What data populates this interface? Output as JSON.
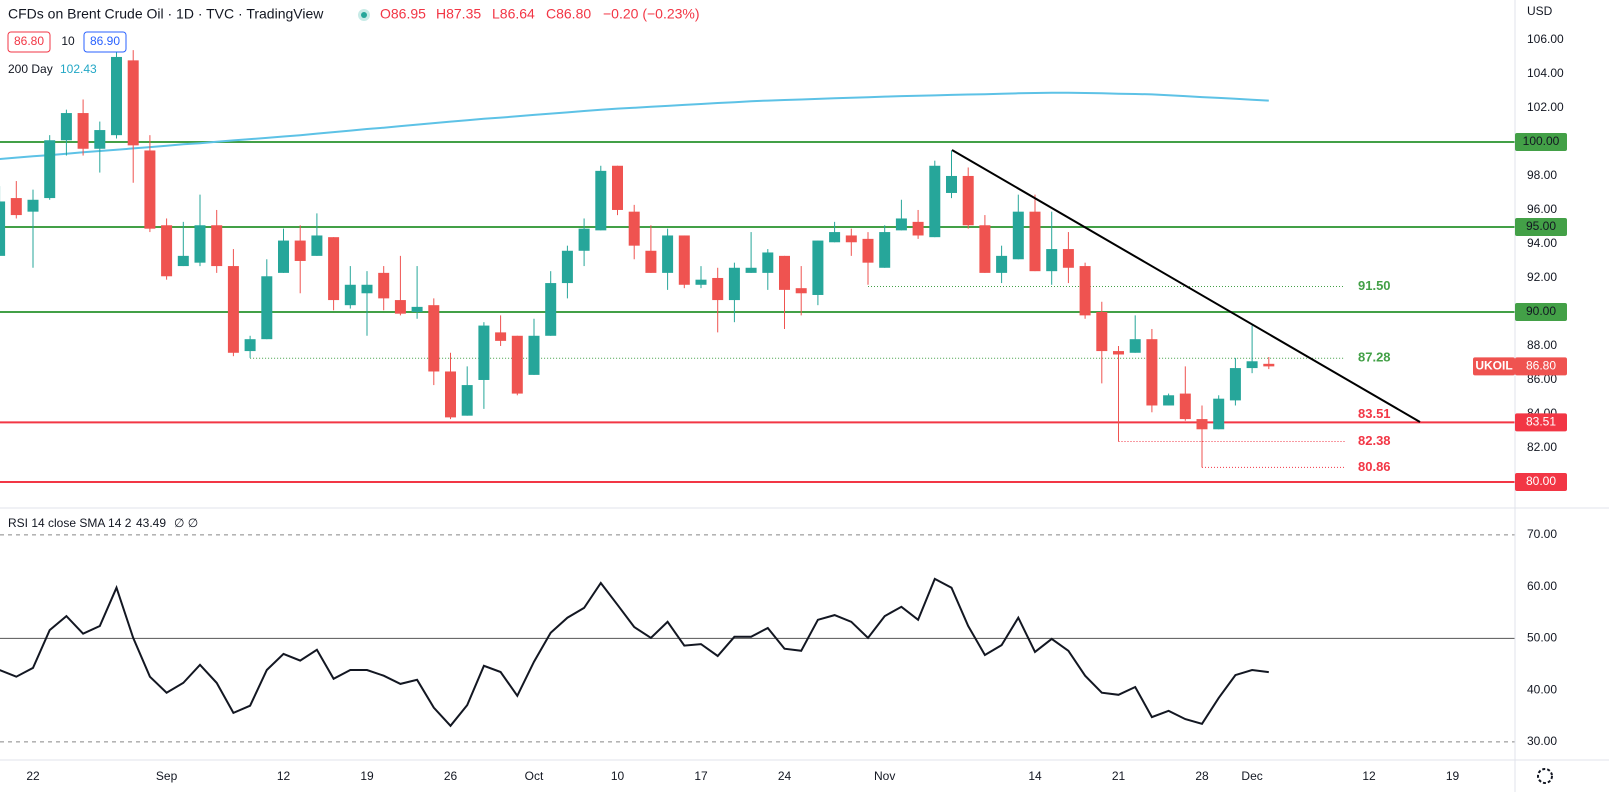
{
  "header": {
    "title": "CFDs on Brent Crude Oil · 1D · TVC · TradingView",
    "ohlc": [
      "O86.95",
      "H87.35",
      "L86.64",
      "C86.80",
      "−0.20 (−0.23%)"
    ],
    "bid": "86.80",
    "spread": "10",
    "ask": "86.90",
    "symbol": "UKOIL",
    "last": "86.80",
    "currency": "USD"
  },
  "chart_data": {
    "type": "candlestick",
    "categories": [
      null,
      null,
      "22",
      null,
      null,
      null,
      null,
      null,
      null,
      null,
      "Sep",
      null,
      null,
      null,
      null,
      null,
      null,
      "12",
      null,
      null,
      null,
      null,
      "19",
      null,
      null,
      null,
      null,
      "26",
      null,
      null,
      null,
      null,
      "Oct",
      null,
      null,
      null,
      null,
      "10",
      null,
      null,
      null,
      null,
      "17",
      null,
      null,
      null,
      null,
      "24",
      null,
      null,
      null,
      null,
      null,
      "Nov",
      null,
      null,
      null,
      null,
      null,
      null,
      null,
      null,
      "14",
      null,
      null,
      null,
      null,
      "21",
      null,
      null,
      null,
      null,
      "28",
      null,
      null,
      "Dec",
      null,
      null,
      null,
      null,
      null,
      null,
      "12",
      null,
      null,
      null,
      null,
      "19",
      null,
      null,
      null
    ],
    "open": [
      93.3,
      96.7,
      95.9,
      96.7,
      100.1,
      101.7,
      99.6,
      100.4,
      104.8,
      99.5,
      95.1,
      92.7,
      92.9,
      95.1,
      92.7,
      87.7,
      88.4,
      92.3,
      94.2,
      93.3,
      94.4,
      90.4,
      91.1,
      92.3,
      90.7,
      90.0,
      90.4,
      86.5,
      83.9,
      86.0,
      88.8,
      88.6,
      86.3,
      88.6,
      91.7,
      93.6,
      94.8,
      98.6,
      95.9,
      93.6,
      92.3,
      94.5,
      91.6,
      92.0,
      90.7,
      92.3,
      92.3,
      93.3,
      91.4,
      91.0,
      94.1,
      94.5,
      94.3,
      92.6,
      94.8,
      95.3,
      94.4,
      97.0,
      98.0,
      95.1,
      92.3,
      93.1,
      95.9,
      92.4,
      93.7,
      92.7,
      90.0,
      87.7,
      87.6,
      88.4,
      84.5,
      85.2,
      83.7,
      83.1,
      84.8,
      86.7,
      86.95,
      null,
      null,
      null,
      null,
      null,
      null,
      null,
      null,
      null,
      null,
      null,
      null,
      null,
      null
    ],
    "high": [
      97.4,
      97.7,
      97.2,
      100.4,
      101.9,
      102.5,
      101.2,
      105.5,
      105.4,
      100.4,
      95.5,
      95.3,
      96.9,
      96.0,
      93.7,
      88.6,
      93.1,
      94.9,
      95.1,
      95.8,
      94.4,
      92.7,
      92.4,
      92.7,
      93.3,
      92.7,
      90.8,
      87.6,
      86.8,
      89.4,
      89.8,
      88.6,
      89.6,
      92.4,
      93.9,
      95.5,
      98.6,
      98.6,
      96.3,
      95.1,
      94.9,
      94.5,
      92.7,
      92.6,
      92.9,
      94.7,
      93.7,
      93.3,
      92.7,
      94.2,
      95.3,
      94.9,
      94.7,
      95.1,
      96.6,
      96.0,
      98.9,
      99.5,
      98.5,
      95.7,
      93.9,
      96.9,
      96.9,
      95.9,
      94.7,
      92.9,
      90.6,
      88.0,
      89.8,
      89.0,
      85.2,
      86.8,
      84.5,
      85.1,
      87.3,
      89.2,
      87.35,
      null,
      null,
      null,
      null,
      null,
      null,
      null,
      null,
      null,
      null,
      null,
      null,
      null,
      null
    ],
    "low": [
      93.3,
      95.5,
      92.6,
      96.6,
      99.2,
      99.2,
      98.2,
      100.2,
      97.6,
      94.7,
      91.9,
      92.7,
      92.7,
      92.3,
      87.4,
      87.3,
      88.4,
      92.3,
      91.1,
      93.3,
      90.1,
      90.2,
      88.6,
      90.1,
      89.8,
      89.6,
      85.7,
      83.7,
      83.9,
      84.3,
      88.0,
      85.1,
      86.3,
      88.6,
      90.8,
      92.7,
      94.8,
      95.7,
      93.1,
      92.3,
      91.3,
      91.4,
      91.4,
      88.8,
      89.4,
      92.3,
      91.3,
      89.0,
      89.8,
      90.4,
      94.1,
      93.3,
      91.6,
      92.6,
      94.8,
      94.3,
      94.4,
      96.7,
      94.9,
      92.3,
      91.7,
      93.1,
      92.4,
      91.6,
      91.7,
      89.6,
      85.8,
      82.38,
      87.6,
      84.1,
      84.5,
      83.6,
      80.86,
      83.1,
      84.5,
      86.4,
      86.64,
      null,
      null,
      null,
      null,
      null,
      null,
      null,
      null,
      null,
      null,
      null,
      null,
      null,
      null
    ],
    "close": [
      96.5,
      95.7,
      96.6,
      100.1,
      101.7,
      99.6,
      100.7,
      105.0,
      99.8,
      94.9,
      92.1,
      93.3,
      95.1,
      92.7,
      87.6,
      88.4,
      92.1,
      94.2,
      93.0,
      94.5,
      90.7,
      91.6,
      91.6,
      90.8,
      89.9,
      90.3,
      86.5,
      83.8,
      85.7,
      89.2,
      88.3,
      85.2,
      88.6,
      91.7,
      93.6,
      94.9,
      98.3,
      96.0,
      93.9,
      92.3,
      94.5,
      91.6,
      91.9,
      90.7,
      92.6,
      92.6,
      93.5,
      91.3,
      91.1,
      94.2,
      94.7,
      94.1,
      92.9,
      94.7,
      95.5,
      94.5,
      98.6,
      98.0,
      95.1,
      92.3,
      93.3,
      95.9,
      92.4,
      93.7,
      92.6,
      89.8,
      87.7,
      87.5,
      88.4,
      84.5,
      85.1,
      83.7,
      83.1,
      84.9,
      86.7,
      87.1,
      86.8,
      null,
      null,
      null,
      null,
      null,
      null,
      null,
      null,
      null,
      null,
      null,
      null,
      null,
      null
    ],
    "up_color": "#26a69a",
    "down_color": "#ef5350",
    "ma": {
      "name": "200 Day",
      "last": "102.43",
      "color": "#5dc2e6",
      "values": [
        99.0,
        99.08,
        99.16,
        99.23,
        99.31,
        99.39,
        99.47,
        99.54,
        99.62,
        99.7,
        99.78,
        99.86,
        99.93,
        100.01,
        100.09,
        100.17,
        100.24,
        100.32,
        100.4,
        100.49,
        100.58,
        100.67,
        100.76,
        100.84,
        100.93,
        101.02,
        101.11,
        101.2,
        101.28,
        101.36,
        101.43,
        101.51,
        101.59,
        101.67,
        101.74,
        101.82,
        101.9,
        101.96,
        102.01,
        102.07,
        102.12,
        102.18,
        102.23,
        102.29,
        102.34,
        102.4,
        102.43,
        102.47,
        102.5,
        102.53,
        102.57,
        102.6,
        102.63,
        102.67,
        102.7,
        102.72,
        102.74,
        102.77,
        102.79,
        102.81,
        102.83,
        102.86,
        102.88,
        102.9,
        102.9,
        102.88,
        102.86,
        102.84,
        102.82,
        102.8,
        102.75,
        102.7,
        102.64,
        102.59,
        102.54,
        102.48,
        102.43,
        null,
        null,
        null,
        null,
        null,
        null,
        null,
        null,
        null,
        null,
        null,
        null,
        null,
        null
      ]
    },
    "levels": [
      {
        "value": 100,
        "label": "100.00",
        "color": "#43a047",
        "style": "solid",
        "inline": false
      },
      {
        "value": 95,
        "label": "95.00",
        "color": "#43a047",
        "style": "solid",
        "inline": false
      },
      {
        "value": 90,
        "label": "90.00",
        "color": "#43a047",
        "style": "solid",
        "inline": false
      },
      {
        "value": 83.51,
        "label": "83.51",
        "color": "#f23645",
        "style": "solid",
        "inline": true
      },
      {
        "value": 80,
        "label": "80.00",
        "color": "#f23645",
        "style": "solid",
        "inline": false
      },
      {
        "value": 91.5,
        "label": "91.50",
        "color": "#43a047",
        "style": "dotted",
        "inline": true
      },
      {
        "value": 87.28,
        "label": "87.28",
        "color": "#43a047",
        "style": "dotted",
        "inline": true
      },
      {
        "value": 82.38,
        "label": "82.38",
        "color": "#f23645",
        "style": "dotted",
        "inline": true
      },
      {
        "value": 80.86,
        "label": "80.86",
        "color": "#f23645",
        "style": "dotted",
        "inline": true
      }
    ],
    "ylim": [
      78.47,
      108.35
    ],
    "yticks": [
      {
        "value": 106,
        "label": "106.00"
      },
      {
        "value": 104,
        "label": "104.00"
      },
      {
        "value": 102,
        "label": "102.00"
      },
      {
        "value": 98,
        "label": "98.00"
      },
      {
        "value": 96,
        "label": "96.00"
      },
      {
        "value": 94,
        "label": "94.00"
      },
      {
        "value": 92,
        "label": "92.00"
      },
      {
        "value": 88,
        "label": "88.00"
      },
      {
        "value": 86,
        "label": "86.00"
      },
      {
        "value": 84,
        "label": "84.00"
      },
      {
        "value": 82,
        "label": "82.00"
      }
    ],
    "rsi": {
      "title": "RSI 14 close SMA 14 2",
      "last": "43.49",
      "extra": "∅ ∅",
      "color": "#131722",
      "values": [
        43.9,
        42.6,
        44.3,
        51.6,
        54.3,
        50.9,
        52.4,
        59.8,
        50.1,
        42.6,
        39.5,
        41.4,
        44.9,
        41.4,
        35.6,
        37.0,
        43.9,
        47.0,
        45.7,
        47.8,
        42.2,
        43.9,
        43.9,
        42.8,
        41.2,
        42.0,
        36.6,
        33.1,
        37.1,
        44.7,
        43.5,
        38.9,
        45.5,
        51.1,
        54.0,
        55.9,
        60.7,
        56.5,
        52.2,
        50.1,
        53.2,
        48.6,
        48.9,
        46.6,
        50.3,
        50.3,
        52.0,
        48.0,
        47.6,
        53.6,
        54.5,
        53.2,
        50.1,
        54.3,
        56.1,
        53.6,
        61.5,
        59.8,
        52.4,
        46.8,
        48.7,
        54.0,
        47.4,
        49.9,
        47.6,
        42.8,
        39.5,
        39.1,
        40.6,
        34.8,
        36.0,
        34.4,
        33.5,
        38.5,
        42.9,
        43.9,
        43.49,
        null,
        null,
        null,
        null,
        null,
        null,
        null,
        null,
        null,
        null,
        null,
        null,
        null,
        null
      ],
      "ylim": [
        26.5,
        75.2
      ],
      "yticks": [
        {
          "value": 70,
          "label": "70.00"
        },
        {
          "value": 60,
          "label": "60.00"
        },
        {
          "value": 50,
          "label": "50.00"
        },
        {
          "value": 40,
          "label": "40.00"
        },
        {
          "value": 30,
          "label": "30.00"
        }
      ],
      "hlines": [
        {
          "value": 70,
          "style": "dashed"
        },
        {
          "value": 50,
          "style": "solid"
        },
        {
          "value": 30,
          "style": "dashed"
        }
      ]
    }
  }
}
